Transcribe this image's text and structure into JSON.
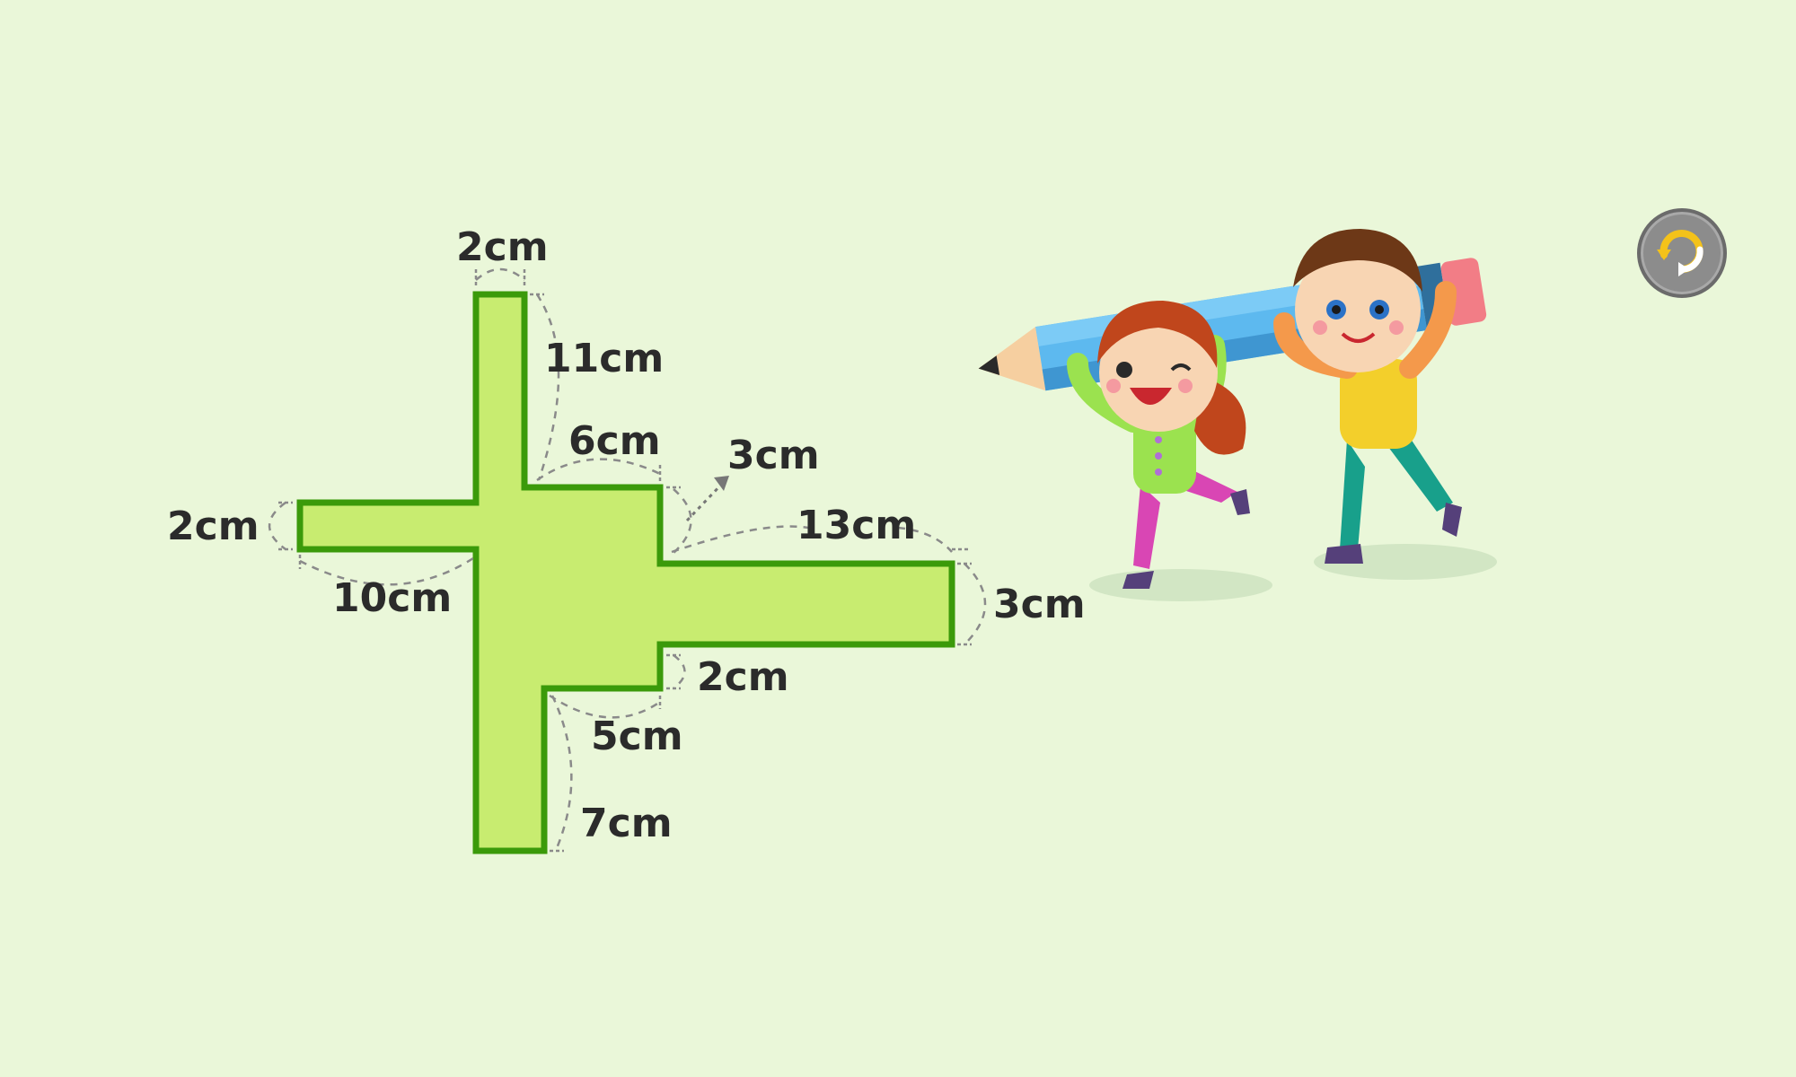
{
  "figure": {
    "shape_fill": "#c8ec70",
    "shape_stroke": "#3b9a0a",
    "background": "#eaf7d9",
    "labels": {
      "top_width": "2cm",
      "upper_arm_height": "11cm",
      "inner_top_step": "6cm",
      "notch_height": "3cm",
      "right_arm_top": "13cm",
      "left_arm_height": "2cm",
      "left_arm_length": "10cm",
      "right_arm_height": "3cm",
      "right_lower_step": "2cm",
      "lower_step": "5cm",
      "bottom_leg": "7cm"
    }
  },
  "illustration": {
    "description_icon": "children-carrying-pencil-icon"
  },
  "controls": {
    "replay_icon": "replay-icon"
  }
}
